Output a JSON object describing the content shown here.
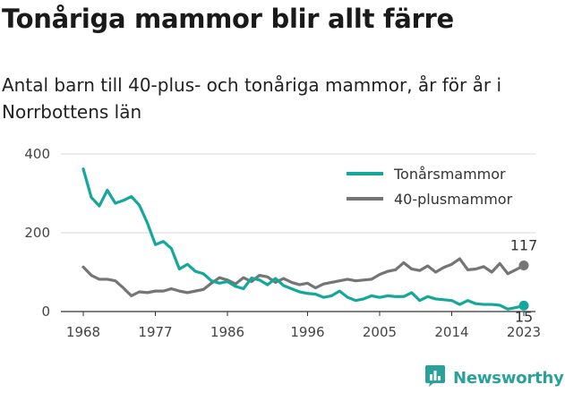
{
  "title": "Tonåriga mammor blir allt färre",
  "subtitle": "Antal barn till 40-plus- och tonåriga mammor, år för år i Norrbottens län",
  "brand": {
    "name": "Newsworthy",
    "icon": "bar-chart-logo-icon",
    "color": "#2aa19a"
  },
  "chart_data": {
    "type": "line",
    "title": "Tonåriga mammor blir allt färre",
    "subtitle": "Antal barn till 40-plus- och tonåriga mammor, år för år i Norrbottens län",
    "xlabel": "",
    "ylabel": "",
    "xlim": [
      1968,
      2023
    ],
    "ylim": [
      0,
      400
    ],
    "x_ticks": [
      "1968",
      "1977",
      "1986",
      "1996",
      "2005",
      "2014",
      "2023"
    ],
    "y_ticks": [
      "0",
      "200",
      "400"
    ],
    "grid": "horizontal",
    "legend": "top-right",
    "x": [
      1968,
      1969,
      1970,
      1971,
      1972,
      1973,
      1974,
      1975,
      1976,
      1977,
      1978,
      1979,
      1980,
      1981,
      1982,
      1983,
      1984,
      1985,
      1986,
      1987,
      1988,
      1989,
      1990,
      1991,
      1992,
      1993,
      1994,
      1995,
      1996,
      1997,
      1998,
      1999,
      2000,
      2001,
      2002,
      2003,
      2004,
      2005,
      2006,
      2007,
      2008,
      2009,
      2010,
      2011,
      2012,
      2013,
      2014,
      2015,
      2016,
      2017,
      2018,
      2019,
      2020,
      2021,
      2022,
      2023
    ],
    "series": [
      {
        "name": "Tonårsmammor",
        "color": "#15a89a",
        "end_label": "15",
        "values": [
          362,
          290,
          268,
          308,
          275,
          282,
          292,
          270,
          225,
          170,
          178,
          160,
          108,
          120,
          102,
          96,
          78,
          72,
          76,
          64,
          58,
          85,
          80,
          68,
          84,
          66,
          58,
          50,
          46,
          44,
          36,
          40,
          52,
          36,
          28,
          32,
          40,
          36,
          40,
          38,
          38,
          48,
          28,
          38,
          32,
          30,
          28,
          18,
          28,
          20,
          18,
          18,
          16,
          6,
          10,
          15
        ]
      },
      {
        "name": "40-plusmammor",
        "color": "#757575",
        "end_label": "117",
        "values": [
          113,
          92,
          82,
          82,
          78,
          60,
          40,
          50,
          48,
          52,
          52,
          58,
          52,
          48,
          52,
          56,
          72,
          86,
          80,
          70,
          86,
          76,
          92,
          88,
          74,
          84,
          74,
          68,
          72,
          60,
          70,
          74,
          78,
          82,
          78,
          80,
          82,
          94,
          102,
          106,
          124,
          108,
          104,
          116,
          100,
          112,
          120,
          134,
          106,
          108,
          114,
          100,
          122,
          96,
          106,
          117
        ]
      }
    ]
  }
}
